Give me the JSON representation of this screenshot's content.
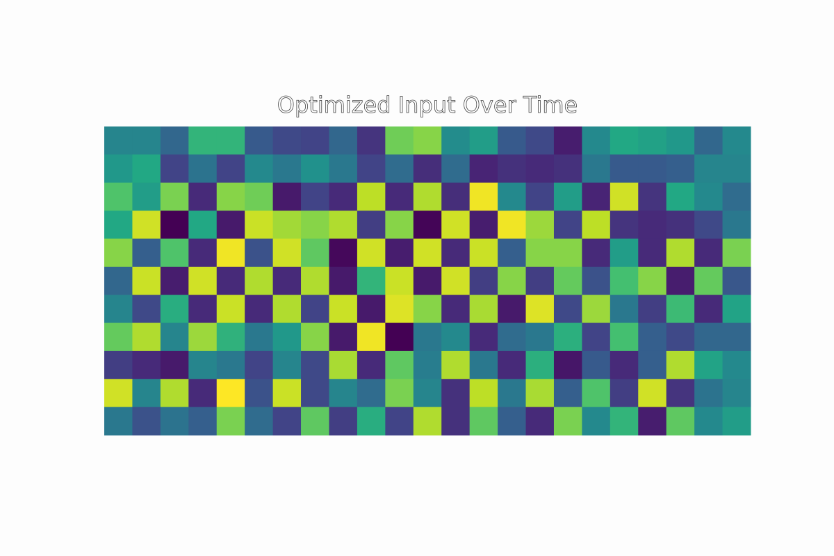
{
  "chart_data": {
    "type": "heatmap",
    "title": "Optimized Input Over Time",
    "colormap": "viridis",
    "values": [
      [
        0.45,
        0.45,
        0.33,
        0.65,
        0.65,
        0.28,
        0.22,
        0.2,
        0.33,
        0.15,
        0.78,
        0.82,
        0.48,
        0.55,
        0.28,
        0.22,
        0.08,
        0.47,
        0.6,
        0.57,
        0.53,
        0.33,
        0.47
      ],
      [
        0.53,
        0.6,
        0.2,
        0.38,
        0.2,
        0.47,
        0.4,
        0.5,
        0.4,
        0.2,
        0.35,
        0.13,
        0.35,
        0.1,
        0.14,
        0.12,
        0.14,
        0.4,
        0.28,
        0.28,
        0.3,
        0.45,
        0.45
      ],
      [
        0.72,
        0.55,
        0.8,
        0.12,
        0.82,
        0.78,
        0.07,
        0.2,
        0.12,
        0.9,
        0.12,
        0.88,
        0.13,
        0.98,
        0.47,
        0.2,
        0.55,
        0.1,
        0.93,
        0.15,
        0.6,
        0.47,
        0.35
      ],
      [
        0.6,
        0.93,
        0.0,
        0.6,
        0.07,
        0.92,
        0.86,
        0.82,
        0.88,
        0.18,
        0.82,
        0.01,
        0.93,
        0.08,
        0.98,
        0.85,
        0.2,
        0.9,
        0.15,
        0.12,
        0.14,
        0.22,
        0.4
      ],
      [
        0.82,
        0.3,
        0.72,
        0.12,
        0.98,
        0.25,
        0.93,
        0.75,
        0.02,
        0.93,
        0.08,
        0.93,
        0.12,
        0.92,
        0.3,
        0.82,
        0.82,
        0.12,
        0.55,
        0.12,
        0.88,
        0.12,
        0.8
      ],
      [
        0.33,
        0.92,
        0.08,
        0.93,
        0.12,
        0.88,
        0.12,
        0.88,
        0.07,
        0.65,
        0.92,
        0.07,
        0.93,
        0.18,
        0.82,
        0.18,
        0.76,
        0.25,
        0.7,
        0.82,
        0.08,
        0.76,
        0.27
      ],
      [
        0.45,
        0.22,
        0.62,
        0.12,
        0.92,
        0.12,
        0.88,
        0.2,
        0.92,
        0.07,
        0.95,
        0.82,
        0.12,
        0.87,
        0.07,
        0.95,
        0.22,
        0.85,
        0.4,
        0.18,
        0.68,
        0.12,
        0.58
      ],
      [
        0.76,
        0.88,
        0.45,
        0.85,
        0.64,
        0.4,
        0.53,
        0.82,
        0.07,
        0.98,
        0.0,
        0.4,
        0.47,
        0.12,
        0.35,
        0.4,
        0.63,
        0.2,
        0.7,
        0.3,
        0.22,
        0.33,
        0.33
      ],
      [
        0.18,
        0.12,
        0.07,
        0.45,
        0.4,
        0.2,
        0.45,
        0.22,
        0.87,
        0.12,
        0.75,
        0.42,
        0.88,
        0.4,
        0.12,
        0.63,
        0.06,
        0.28,
        0.12,
        0.3,
        0.88,
        0.58,
        0.47
      ],
      [
        0.93,
        0.45,
        0.88,
        0.12,
        1.0,
        0.25,
        0.92,
        0.22,
        0.45,
        0.35,
        0.8,
        0.45,
        0.14,
        0.9,
        0.4,
        0.87,
        0.3,
        0.72,
        0.18,
        0.93,
        0.15,
        0.38,
        0.45
      ],
      [
        0.4,
        0.25,
        0.38,
        0.3,
        0.8,
        0.35,
        0.2,
        0.75,
        0.18,
        0.62,
        0.2,
        0.88,
        0.14,
        0.75,
        0.3,
        0.12,
        0.8,
        0.47,
        0.65,
        0.08,
        0.75,
        0.47,
        0.55
      ]
    ]
  }
}
